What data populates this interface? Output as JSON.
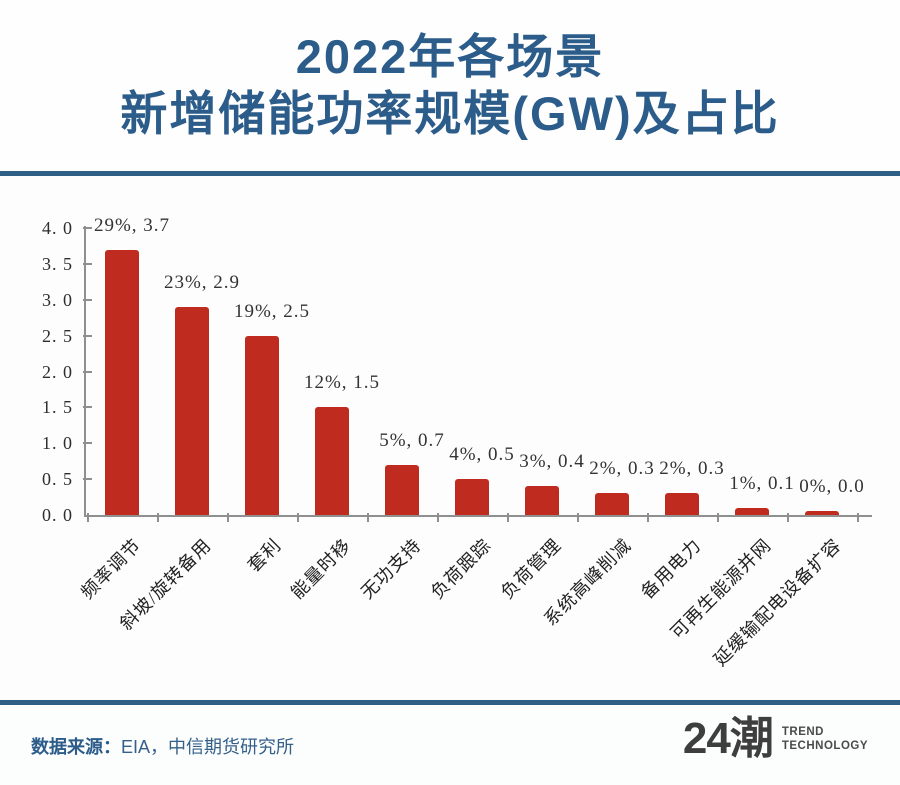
{
  "header": {
    "title_line1": "2022年各场景",
    "title_line2": "新增储能功率规模(GW)及占比"
  },
  "chart_data": {
    "type": "bar",
    "title": "2022年各场景新增储能功率规模(GW)及占比",
    "categories": [
      "频率调节",
      "斜坡/旋转备用",
      "套利",
      "能量时移",
      "无功支持",
      "负荷跟踪",
      "负荷管理",
      "系统高峰削减",
      "备用电力",
      "可再生能源并网",
      "延缓输配电设备扩容"
    ],
    "series": [
      {
        "name": "新增储能功率规模(GW)",
        "values": [
          3.7,
          2.9,
          2.5,
          1.5,
          0.7,
          0.5,
          0.4,
          0.3,
          0.3,
          0.1,
          0.0
        ]
      }
    ],
    "share_pct": [
      29,
      23,
      19,
      12,
      5,
      4,
      3,
      2,
      2,
      1,
      0
    ],
    "point_labels": [
      "29%, 3.7",
      "23%, 2.9",
      "19%, 2.5",
      "12%, 1.5",
      "5%, 0.7",
      "4%, 0.5",
      "3%, 0.4",
      "2%, 0.3",
      "2%, 0.3",
      "1%, 0.1",
      "0%, 0.0"
    ],
    "xlabel": "",
    "ylabel": "",
    "ylim": [
      0.0,
      4.0
    ],
    "ytick_step": 0.5,
    "ytick_labels": [
      "4. 0",
      "3. 5",
      "3. 0",
      "2. 5",
      "2. 0",
      "1. 5",
      "1. 0",
      "0. 5",
      "0. 0"
    ],
    "grid": false,
    "legend_position": "none",
    "bar_color": "#bf2b1e"
  },
  "footer": {
    "source_label": "数据来源：",
    "source_text": "EIA，中信期货研究所",
    "logo_text": "24潮",
    "logo_sub_line1": "TREND",
    "logo_sub_line2": "TECHNOLOGY"
  },
  "colors": {
    "title_blue": "#2b5c8a",
    "divider_blue": "#2f5f84",
    "bar_red": "#bf2b1e",
    "axis_gray": "#8f8f8f",
    "logo_gray": "#3e3e3e"
  }
}
